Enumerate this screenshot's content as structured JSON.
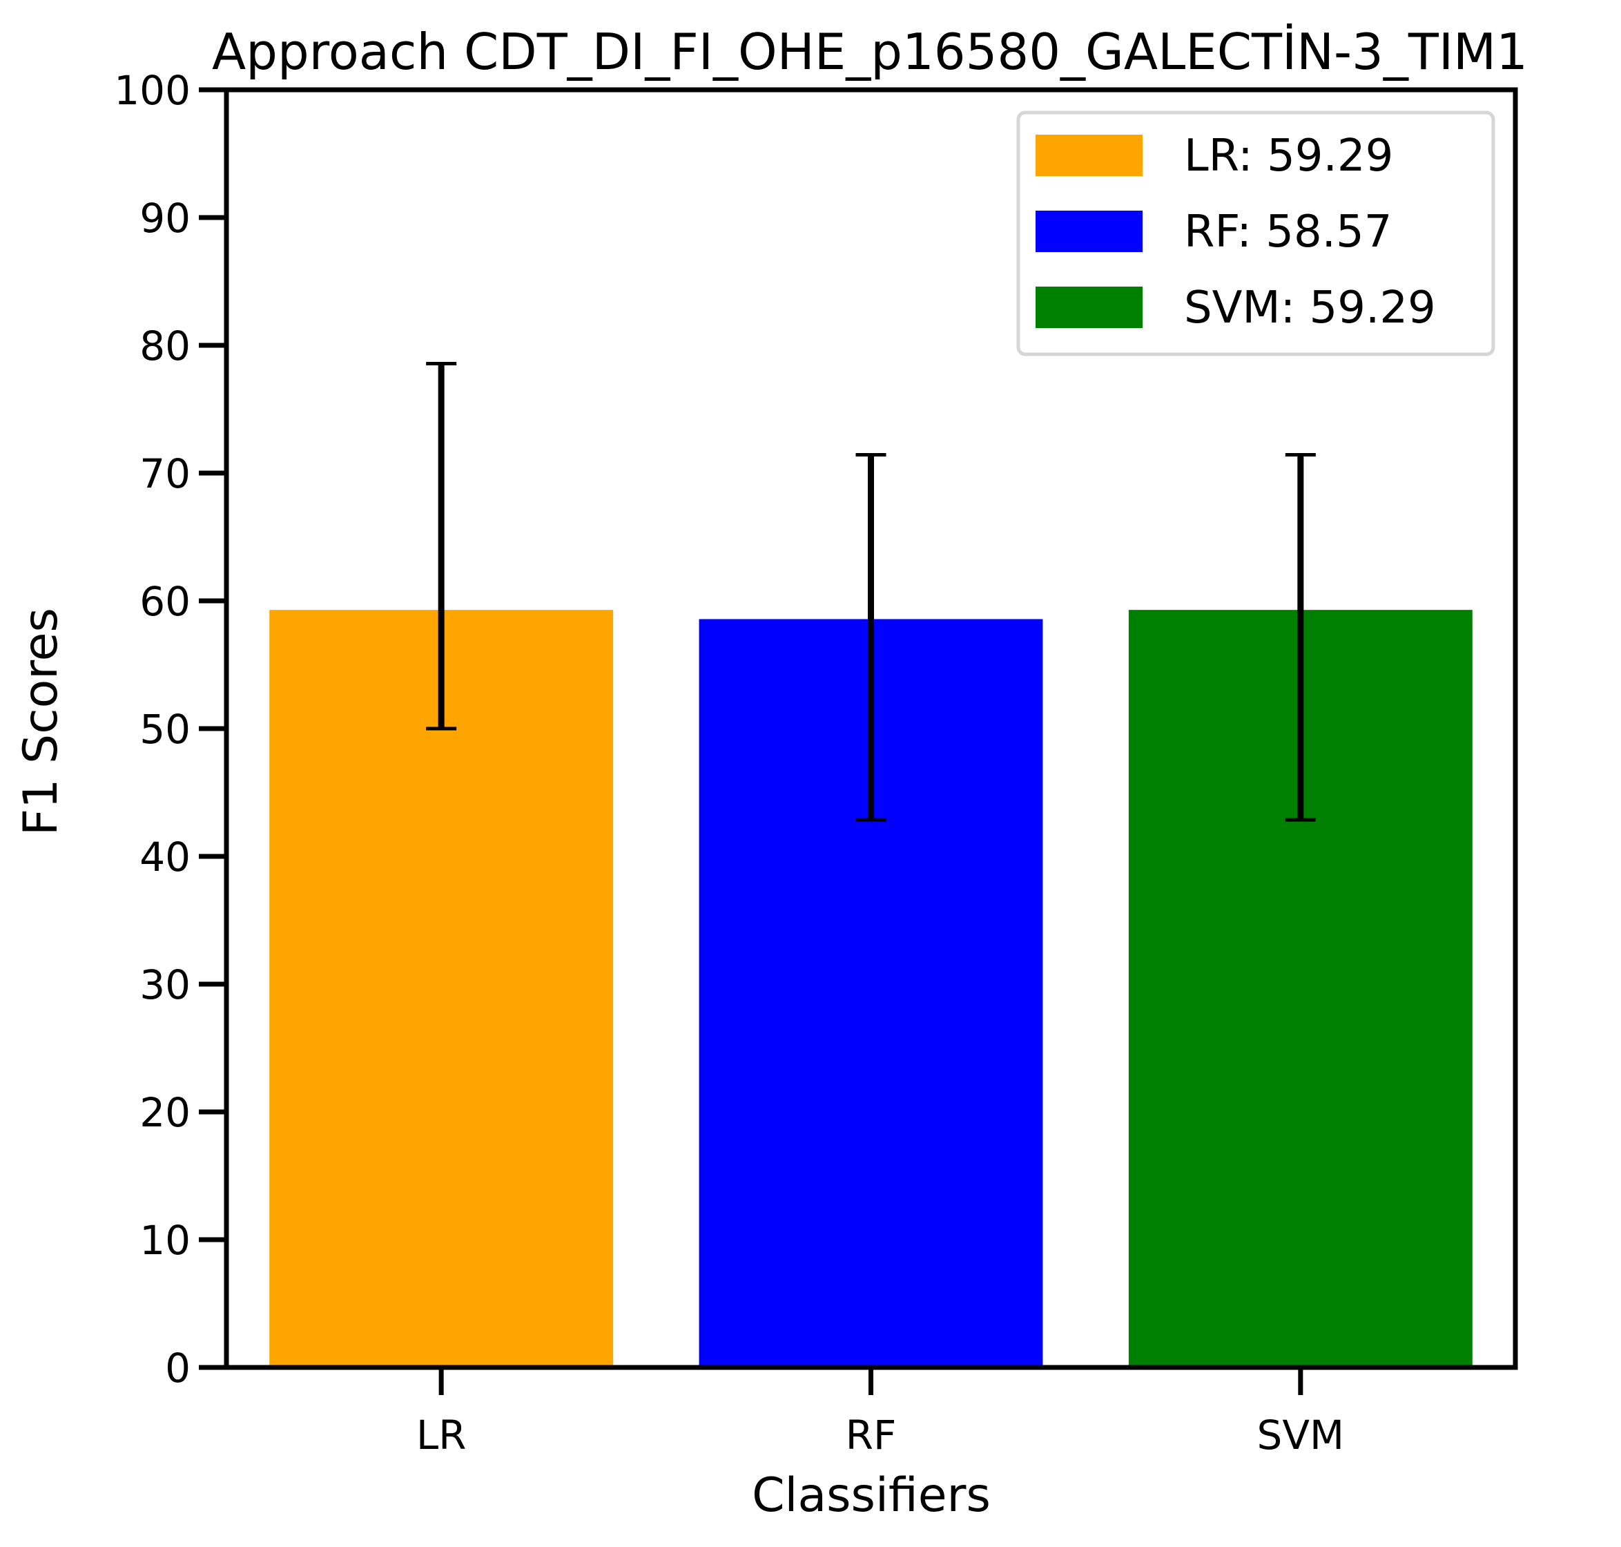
{
  "chart_data": {
    "type": "bar",
    "title": "Approach CDT_DI_FI_OHE_p16580_GALECTİN-3_TIM1",
    "xlabel": "Classifiers",
    "ylabel": "F1 Scores",
    "ylim": [
      0,
      100
    ],
    "yticks": [
      0,
      10,
      20,
      30,
      40,
      50,
      60,
      70,
      80,
      90,
      100
    ],
    "categories": [
      "LR",
      "RF",
      "SVM"
    ],
    "values": [
      59.29,
      58.57,
      59.29
    ],
    "error_low": [
      50.0,
      42.86,
      42.86
    ],
    "error_high": [
      78.57,
      71.43,
      71.43
    ],
    "colors": [
      "#ffa500",
      "#0000ff",
      "#008000"
    ],
    "legend": {
      "position": "top-right",
      "entries": [
        "LR: 59.29",
        "RF: 58.57",
        "SVM: 59.29"
      ]
    },
    "grid": false
  }
}
